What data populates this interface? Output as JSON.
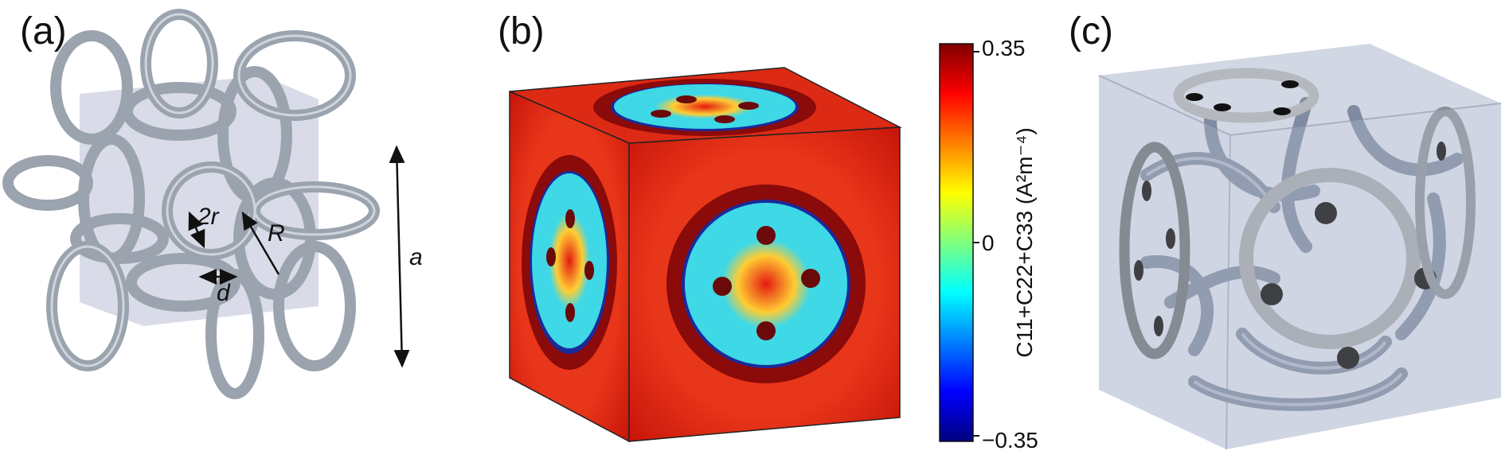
{
  "panels": {
    "a": {
      "label": "(a)",
      "annotations": {
        "two_r": "2r",
        "R": "R",
        "d": "d",
        "a": "a"
      }
    },
    "b": {
      "label": "(b)",
      "colorbar": {
        "max_label": "0.35",
        "mid_label": "0",
        "min_label": "−0.35",
        "max": 0.35,
        "min": -0.35,
        "quantity": "C11+C22+C33 (A²m⁻⁴)"
      }
    },
    "c": {
      "label": "(c)"
    }
  },
  "colors": {
    "tube": "#9aa3ae",
    "box": "#b9c0d6",
    "field_high": "#c8150a",
    "field_low": "#0b1a7a",
    "cyan": "#3fd8e6"
  }
}
